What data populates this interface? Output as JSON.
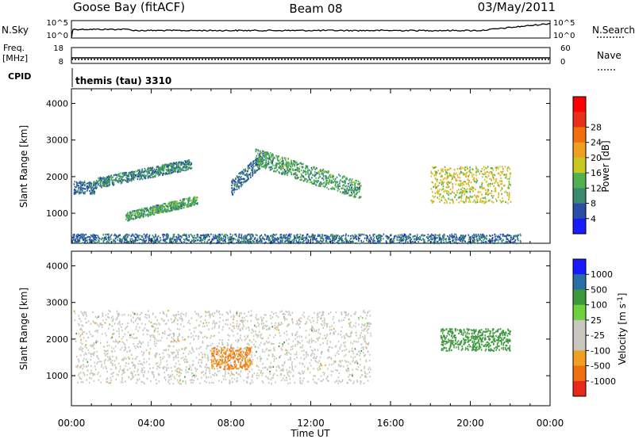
{
  "header": {
    "site": "Goose Bay (fitACF)",
    "beam": "Beam 08",
    "date": "03/May/2011"
  },
  "top_panels": {
    "nsky_label": "N.Sky",
    "nsky_tick_high": "10^5",
    "nsky_tick_low": "10^0",
    "nsearch_label": "N.Search",
    "nsearch_tick_high": "10^5",
    "nsearch_tick_low": "10^0",
    "freq_label": "Freq.",
    "freq_unit": "[MHz]",
    "freq_tick_high": "18",
    "freq_tick_low": "8",
    "nave_label": "Nave",
    "nave_tick_high": "60",
    "nave_tick_low": "0",
    "cpid_label": "CPID",
    "cpid_value": "themis (tau) 3310"
  },
  "chart_data": [
    {
      "type": "heatmap",
      "panel": "power",
      "ylabel": "Slant Range [km]",
      "xlabel": "",
      "x_range_hours": [
        0,
        24
      ],
      "ylim": [
        180,
        4400
      ],
      "yticks": [
        1000,
        2000,
        3000,
        4000
      ],
      "colorbar": {
        "label": "Power [dB]",
        "ticks": [
          "4",
          "8",
          "12",
          "16",
          "20",
          "24",
          "28"
        ],
        "colors": [
          "#1a1aff",
          "#2a4ea6",
          "#3b8a6e",
          "#4fb24f",
          "#c8c820",
          "#f0a020",
          "#f07010",
          "#e83018",
          "#ff0000"
        ]
      },
      "features": [
        {
          "name": "early echo band",
          "hours": [
            0.1,
            1.2
          ],
          "range_km": [
            1550,
            1900
          ],
          "power_db": 8
        },
        {
          "name": "rising band 1",
          "hours": [
            1.2,
            6.0
          ],
          "range_km": [
            1700,
            2500
          ],
          "power_db": 10
        },
        {
          "name": "rising band 2",
          "hours": [
            2.7,
            6.3
          ],
          "range_km": [
            800,
            1500
          ],
          "power_db": 12
        },
        {
          "name": "converging arc",
          "hours": [
            8.0,
            9.5
          ],
          "range_km": [
            1500,
            2700
          ],
          "power_db": 8
        },
        {
          "name": "descending band",
          "hours": [
            9.2,
            14.5
          ],
          "range_km": [
            1400,
            2800
          ],
          "power_db": 12
        },
        {
          "name": "evening patch",
          "hours": [
            18.0,
            22.0
          ],
          "range_km": [
            1300,
            2300
          ],
          "power_db": 18
        },
        {
          "name": "near range clutter",
          "hours": [
            0,
            22.5
          ],
          "range_km": [
            200,
            450
          ],
          "power_db": 8
        }
      ]
    },
    {
      "type": "heatmap",
      "panel": "velocity",
      "ylabel": "Slant Range [km]",
      "xlabel": "Time UT",
      "x_range_hours": [
        0,
        24
      ],
      "xticks": [
        "00:00",
        "04:00",
        "08:00",
        "12:00",
        "16:00",
        "20:00",
        "00:00"
      ],
      "ylim": [
        180,
        4400
      ],
      "yticks": [
        1000,
        2000,
        3000,
        4000
      ],
      "colorbar": {
        "label": "Velocity [m s^-1]",
        "ticks": [
          "1000",
          "500",
          "100",
          "25",
          "-25",
          "-100",
          "-500",
          "-1000"
        ],
        "colors": [
          "#1a1aff",
          "#2a6ea6",
          "#3c9a3c",
          "#70d040",
          "#c8c8c0",
          "#c8c8c0",
          "#f0a020",
          "#f07010",
          "#e82818"
        ]
      },
      "features": [
        {
          "name": "ground scatter bands",
          "hours": [
            0.1,
            15.0
          ],
          "range_km": [
            800,
            2800
          ],
          "velocity_ms": 0
        },
        {
          "name": "negative velocity patches",
          "hours": [
            7.0,
            9.0
          ],
          "range_km": [
            1200,
            1800
          ],
          "velocity_ms": -300
        },
        {
          "name": "positive velocity patch",
          "hours": [
            18.5,
            22.0
          ],
          "range_km": [
            1700,
            2300
          ],
          "velocity_ms": 80
        }
      ]
    }
  ]
}
